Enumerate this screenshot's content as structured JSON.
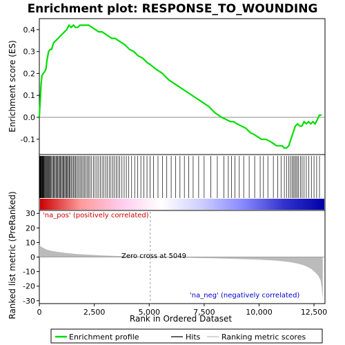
{
  "chart_data": {
    "type": "line",
    "title": "Enrichment plot: RESPONSE_TO_WOUNDING",
    "xlabel": "Rank in Ordered Dataset",
    "x_ticks": [
      "0",
      "2,500",
      "5,000",
      "7,500",
      "10,000",
      "12,500"
    ],
    "xlim": [
      0,
      13000
    ],
    "top_panel": {
      "ylabel": "Enrichment score (ES)",
      "ylim": [
        -0.17,
        0.45
      ],
      "y_ticks": [
        "0.4",
        "0.3",
        "0.2",
        "0.1",
        "0.0",
        "-0.1"
      ],
      "series": [
        {
          "name": "Enrichment profile",
          "color": "#00dd00",
          "x": [
            0,
            40,
            80,
            120,
            180,
            250,
            300,
            350,
            420,
            500,
            560,
            650,
            750,
            850,
            950,
            1050,
            1150,
            1250,
            1350,
            1450,
            1550,
            1650,
            1750,
            1850,
            1950,
            2050,
            2150,
            2250,
            2400,
            2550,
            2700,
            2850,
            3000,
            3150,
            3300,
            3450,
            3600,
            3750,
            3900,
            4100,
            4300,
            4500,
            4700,
            4900,
            5049,
            5300,
            5600,
            5900,
            6200,
            6500,
            6800,
            7100,
            7400,
            7700,
            8000,
            8300,
            8500,
            8700,
            8850,
            9000,
            9200,
            9400,
            9600,
            9800,
            9950,
            10100,
            10300,
            10500,
            10650,
            10800,
            10950,
            11050,
            11150,
            11250,
            11350,
            11450,
            11550,
            11650,
            11750,
            11850,
            11950,
            12050,
            12150,
            12250,
            12350,
            12450,
            12550,
            12650,
            12750,
            12850
          ],
          "y": [
            0.0,
            0.08,
            0.15,
            0.19,
            0.2,
            0.21,
            0.22,
            0.26,
            0.3,
            0.31,
            0.31,
            0.34,
            0.35,
            0.36,
            0.37,
            0.38,
            0.39,
            0.4,
            0.42,
            0.41,
            0.42,
            0.41,
            0.41,
            0.42,
            0.42,
            0.42,
            0.42,
            0.42,
            0.41,
            0.4,
            0.39,
            0.39,
            0.38,
            0.37,
            0.36,
            0.36,
            0.35,
            0.34,
            0.33,
            0.31,
            0.3,
            0.28,
            0.27,
            0.25,
            0.24,
            0.22,
            0.2,
            0.17,
            0.15,
            0.13,
            0.11,
            0.09,
            0.07,
            0.05,
            0.02,
            0.0,
            -0.01,
            -0.02,
            -0.02,
            -0.03,
            -0.04,
            -0.05,
            -0.07,
            -0.08,
            -0.09,
            -0.1,
            -0.1,
            -0.11,
            -0.12,
            -0.13,
            -0.13,
            -0.13,
            -0.14,
            -0.14,
            -0.13,
            -0.1,
            -0.07,
            -0.04,
            -0.03,
            -0.04,
            -0.04,
            -0.02,
            -0.03,
            -0.02,
            -0.03,
            -0.02,
            -0.03,
            -0.01,
            0.01,
            0.01
          ]
        }
      ]
    },
    "hits_panel": {
      "series_name": "Hits",
      "hit_positions": [
        5,
        20,
        35,
        50,
        70,
        90,
        110,
        130,
        150,
        170,
        190,
        210,
        240,
        270,
        300,
        330,
        360,
        390,
        420,
        450,
        480,
        520,
        560,
        600,
        640,
        680,
        720,
        760,
        800,
        840,
        880,
        920,
        960,
        1000,
        1040,
        1080,
        1120,
        1160,
        1200,
        1240,
        1280,
        1320,
        1360,
        1400,
        1450,
        1500,
        1550,
        1600,
        1650,
        1700,
        1760,
        1820,
        1880,
        1940,
        2000,
        2060,
        2120,
        2180,
        2240,
        2300,
        2380,
        2460,
        2540,
        2620,
        2700,
        2780,
        2860,
        2940,
        3020,
        3100,
        3180,
        3260,
        3340,
        3420,
        3500,
        3580,
        3660,
        3760,
        3860,
        3960,
        4060,
        4200,
        4340,
        4480,
        4620,
        4760,
        4900,
        5040,
        5200,
        5400,
        5600,
        5800,
        6000,
        6200,
        6400,
        6600,
        6800,
        7000,
        7250,
        7500,
        7800,
        8100,
        8400,
        8600,
        8750,
        8900,
        9100,
        9300,
        9550,
        9800,
        10050,
        10200,
        10400,
        10650,
        10850,
        11000,
        11150,
        11250,
        11350,
        11430,
        11500,
        11560,
        11620,
        11680,
        11740,
        11800,
        11880,
        11960,
        12050,
        12150,
        12260,
        12380,
        12500,
        12620,
        12750
      ],
      "color_band": [
        "#cc0000",
        "#ff9999",
        "#ffccee",
        "#ffffff",
        "#ccccff",
        "#8888ff",
        "#3333cc",
        "#0000aa"
      ]
    },
    "bottom_panel": {
      "ylabel": "Ranked list metric (PreRanked)",
      "ylim": [
        -32,
        32
      ],
      "y_ticks": [
        "30",
        "20",
        "10",
        "0",
        "-10",
        "-20",
        "-30"
      ],
      "series_name": "Ranking metric scores",
      "color": "#bbbbbb",
      "x": [
        0,
        50,
        150,
        300,
        500,
        800,
        1200,
        1700,
        2300,
        3000,
        3800,
        4500,
        5049,
        6000,
        7000,
        8000,
        9000,
        10000,
        10600,
        11000,
        11400,
        11700,
        12000,
        12200,
        12400,
        12550,
        12700,
        12800,
        12850,
        12900
      ],
      "y": [
        8.5,
        7.5,
        6.5,
        5.3,
        4.4,
        3.6,
        2.8,
        2.1,
        1.5,
        1.0,
        0.6,
        0.3,
        0.0,
        -0.3,
        -0.6,
        -0.9,
        -1.3,
        -1.8,
        -2.3,
        -2.8,
        -3.5,
        -4.3,
        -5.5,
        -6.8,
        -8.5,
        -10.5,
        -13.0,
        -16.0,
        -21.0,
        -29.0
      ],
      "annotations": [
        "'na_pos' (positively correlated)",
        "Zero cross at 5049",
        "'na_neg' (negatively correlated)"
      ],
      "zero_cross": 5049,
      "pos_color": "#cc0000",
      "neg_color": "#0000cc"
    },
    "legend": {
      "placement": "bottom",
      "items": [
        {
          "label": "Enrichment profile",
          "color": "#00dd00"
        },
        {
          "label": "Hits",
          "color": "#000000"
        },
        {
          "label": "Ranking metric scores",
          "color": "#bbbbbb"
        }
      ]
    }
  }
}
